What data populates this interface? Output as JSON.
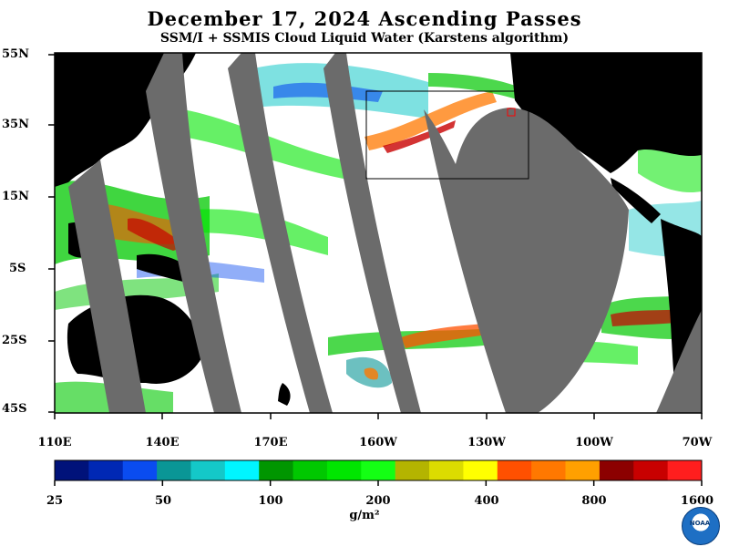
{
  "title": "December 17, 2024  Ascending Passes",
  "subtitle": "SSM/I + SSMIS Cloud Liquid Water (Karstens algorithm)",
  "latitude_labels": [
    "55N",
    "35N",
    "15N",
    "5S",
    "25S",
    "45S"
  ],
  "longitude_labels": [
    "110E",
    "140E",
    "170E",
    "160W",
    "130W",
    "100W",
    "70W"
  ],
  "colorbar": {
    "labels": [
      "25",
      "50",
      "100",
      "200",
      "400",
      "800",
      "1600"
    ],
    "units": "g/m²",
    "colors": [
      "#00127a",
      "#0028b4",
      "#0a4cf0",
      "#0a9696",
      "#14c8c8",
      "#00f5ff",
      "#009600",
      "#00c800",
      "#00e600",
      "#14ff14",
      "#b4b400",
      "#dcdc00",
      "#ffff00",
      "#ff5000",
      "#ff7800",
      "#ffa000",
      "#8c0000",
      "#c80000",
      "#ff1e1e"
    ]
  },
  "logo_text": "NOAA"
}
